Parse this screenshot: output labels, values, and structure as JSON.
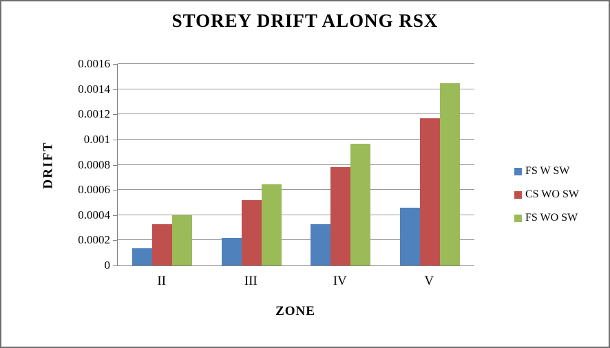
{
  "frame": {
    "background": "#ffffff",
    "border_color": "#6e6e6e"
  },
  "chart_data": {
    "type": "bar",
    "title": "STOREY DRIFT ALONG RSX",
    "xlabel": "ZONE",
    "ylabel": "DRIFT",
    "categories": [
      "II",
      "III",
      "IV",
      "V"
    ],
    "series": [
      {
        "name": "FS W SW",
        "color": "#4F81BD",
        "values": [
          0.000135,
          0.00022,
          0.000325,
          0.00046
        ]
      },
      {
        "name": "CS WO SW",
        "color": "#C0504D",
        "values": [
          0.000325,
          0.00052,
          0.00078,
          0.00117
        ]
      },
      {
        "name": "FS WO SW",
        "color": "#9BBB59",
        "values": [
          0.0004,
          0.000645,
          0.000965,
          0.001445
        ]
      }
    ],
    "ylim": [
      0,
      0.0016
    ],
    "ytick_step": 0.0002,
    "ytick_labels": [
      "0",
      "0.0002",
      "0.0004",
      "0.0006",
      "0.0008",
      "0.001",
      "0.0012",
      "0.0014",
      "0.0016"
    ],
    "grid": true,
    "legend_position": "right",
    "gridline_color": "#989898",
    "axis_color": "#808080"
  }
}
